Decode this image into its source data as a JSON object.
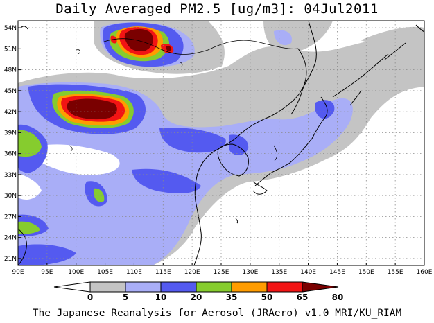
{
  "title": "Daily Averaged PM2.5 [ug/m3]: 04Jul2011",
  "credit": "The Japanese Reanalysis for Aerosol (JRAero) v1.0 MRI/KU_RIAM",
  "map": {
    "lon_range": [
      90,
      160
    ],
    "lat_range": [
      20,
      55
    ],
    "lon_ticks": [
      "90E",
      "95E",
      "100E",
      "105E",
      "110E",
      "115E",
      "120E",
      "125E",
      "130E",
      "135E",
      "140E",
      "145E",
      "150E",
      "155E",
      "160E"
    ],
    "lat_ticks": [
      "54N",
      "51N",
      "48N",
      "45N",
      "42N",
      "39N",
      "36N",
      "33N",
      "30N",
      "27N",
      "24N",
      "21N"
    ],
    "grid": true
  },
  "colorbar": {
    "levels": [
      "0",
      "5",
      "10",
      "20",
      "35",
      "50",
      "65",
      "80"
    ],
    "colors": [
      "#ffffff",
      "#c4c4c4",
      "#a9aef7",
      "#545af0",
      "#86cc2e",
      "#ff9c00",
      "#f21414",
      "#7a0000"
    ]
  }
}
